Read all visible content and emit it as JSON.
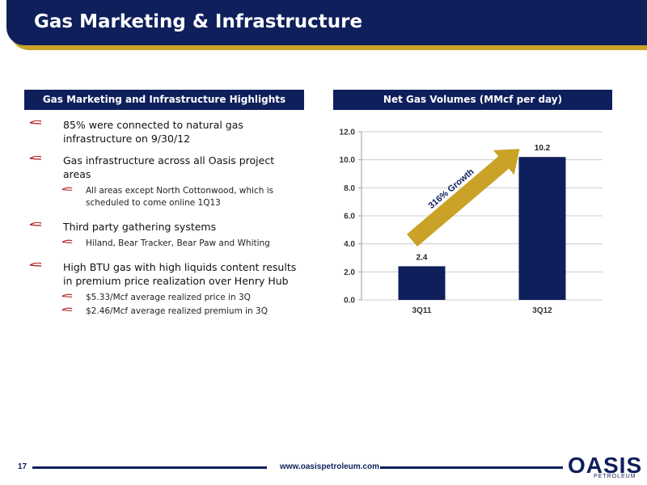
{
  "header": {
    "title": "Gas Marketing & Infrastructure"
  },
  "left_panel": {
    "header": "Gas Marketing and Infrastructure Highlights",
    "bullets": [
      {
        "text": "85% were connected to natural gas infrastructure on 9/30/12",
        "sub": []
      },
      {
        "text": "Gas infrastructure across all Oasis project areas",
        "sub": [
          "All areas except North Cottonwood, which is scheduled to come online 1Q13"
        ]
      },
      {
        "text": "Third party gathering systems",
        "sub": [
          "Hiland, Bear Tracker, Bear Paw and Whiting"
        ]
      },
      {
        "text": "High BTU gas with high liquids content results in premium price realization over Henry Hub",
        "sub": [
          "$5.33/Mcf average realized price in 3Q",
          "$2.46/Mcf average realized premium in 3Q"
        ]
      }
    ]
  },
  "right_panel": {
    "header": "Net Gas Volumes (MMcf per day)"
  },
  "chart_data": {
    "type": "bar",
    "title": "Net Gas Volumes (MMcf per day)",
    "categories": [
      "3Q11",
      "3Q12"
    ],
    "values": [
      2.4,
      10.2
    ],
    "data_labels": [
      "2.4",
      "10.2"
    ],
    "ylim": [
      0,
      12
    ],
    "yticks": [
      "0.0",
      "2.0",
      "4.0",
      "6.0",
      "8.0",
      "10.0",
      "12.0"
    ],
    "grid": true,
    "annotation": "316% Growth",
    "colors": {
      "bar": "#0e1f5b",
      "arrow": "#c9a227",
      "grid": "#cccccc"
    }
  },
  "footer": {
    "page": "17",
    "website": "www.oasispetroleum.com"
  },
  "logo": {
    "text": "OASIS",
    "sub": "PETROLEUM"
  }
}
